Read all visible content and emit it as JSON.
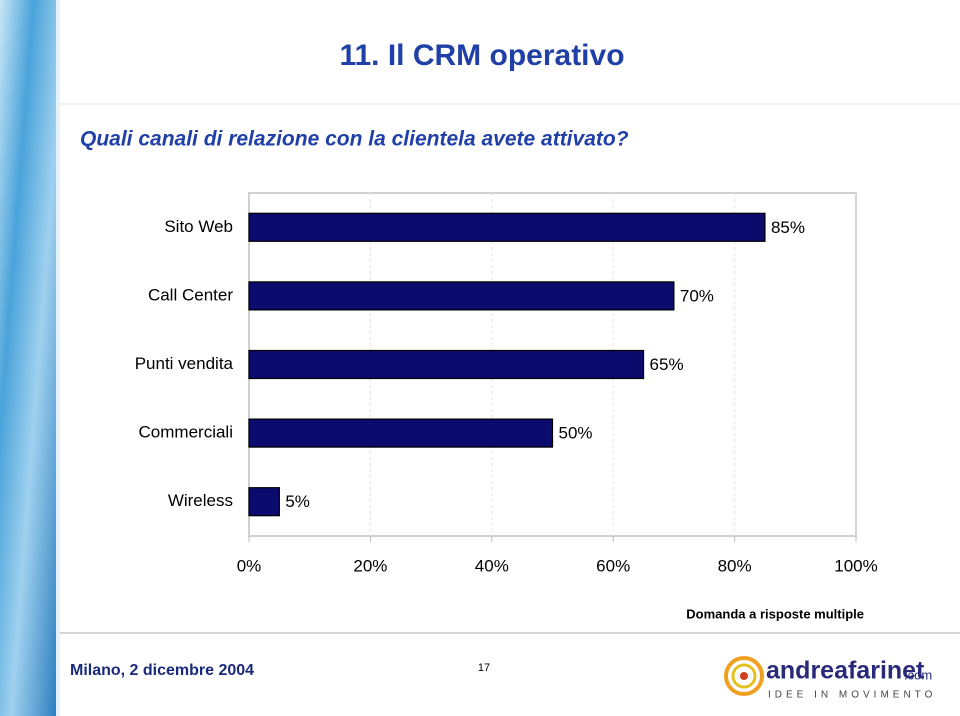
{
  "slide": {
    "title": "11. Il CRM operativo",
    "subtitle": "Quali canali di relazione con la clientela avete attivato?",
    "note": "Domanda a risposte multiple",
    "footer": "Milano, 2 dicembre 2004",
    "page_number": "17",
    "logo": {
      "name": "andreafarinet",
      "suffix": ".com",
      "tagline": "IDEE IN MOVIMENTO"
    }
  },
  "chart_data": {
    "type": "hbar",
    "categories": [
      "Sito Web",
      "Call Center",
      "Punti vendita",
      "Commerciali",
      "Wireless"
    ],
    "values": [
      85,
      70,
      65,
      50,
      5
    ],
    "value_labels": [
      "85%",
      "70%",
      "65%",
      "50%",
      "5%"
    ],
    "color": "#0b0b6e",
    "xlim": [
      0,
      100
    ],
    "xticks": [
      {
        "value": 0,
        "label": "0%"
      },
      {
        "value": 20,
        "label": "20%"
      },
      {
        "value": 40,
        "label": "40%"
      },
      {
        "value": 60,
        "label": "60%"
      },
      {
        "value": 80,
        "label": "80%"
      },
      {
        "value": 100,
        "label": "100%"
      }
    ],
    "grid": true
  }
}
